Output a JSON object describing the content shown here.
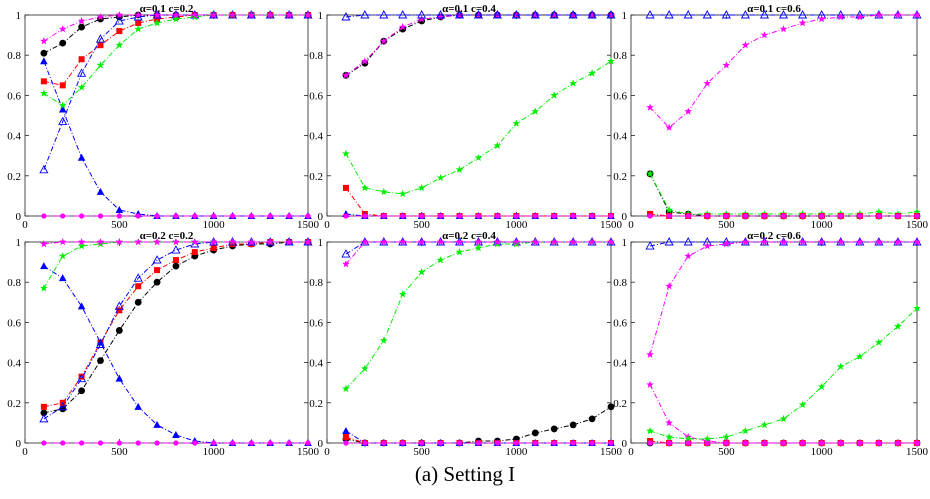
{
  "caption": "(a) Setting I",
  "colors": {
    "black": "#000000",
    "red": "#ff0000",
    "blue": "#0000ff",
    "green": "#00ee00",
    "magenta": "#ff00ff"
  },
  "chart_data": [
    {
      "type": "line",
      "title": "α=0.1 c=0.2",
      "x": [
        100,
        200,
        300,
        400,
        500,
        600,
        700,
        800,
        900,
        1000,
        1100,
        1200,
        1300,
        1400,
        1500
      ],
      "xlim": [
        0,
        1500
      ],
      "ylim": [
        0,
        1
      ],
      "xticks": [
        "0",
        "500",
        "1000",
        "1500"
      ],
      "yticks": [
        "0",
        "0.2",
        "0.4",
        "0.6",
        "0.8",
        "1"
      ],
      "series": [
        {
          "color": "black",
          "marker": "circle",
          "values": [
            0.81,
            0.86,
            0.94,
            0.98,
            0.99,
            1,
            1,
            1,
            1,
            1,
            1,
            1,
            1,
            1,
            1
          ]
        },
        {
          "color": "red",
          "marker": "square",
          "values": [
            0.67,
            0.65,
            0.78,
            0.85,
            0.92,
            0.96,
            0.98,
            0.99,
            1,
            1,
            1,
            1,
            1,
            1,
            1
          ]
        },
        {
          "color": "blue",
          "marker": "triangle-filled",
          "values": [
            0.77,
            0.53,
            0.29,
            0.12,
            0.03,
            0.01,
            0,
            0,
            0,
            0,
            0,
            0,
            0,
            0,
            0
          ]
        },
        {
          "color": "blue",
          "marker": "triangle-open",
          "values": [
            0.23,
            0.47,
            0.71,
            0.88,
            0.97,
            0.99,
            1,
            1,
            1,
            1,
            1,
            1,
            1,
            1,
            1
          ]
        },
        {
          "color": "green",
          "marker": "star",
          "values": [
            0.61,
            0.55,
            0.64,
            0.75,
            0.85,
            0.93,
            0.96,
            0.98,
            0.99,
            1,
            1,
            1,
            1,
            1,
            1
          ]
        },
        {
          "color": "magenta",
          "marker": "star",
          "values": [
            0.87,
            0.93,
            0.97,
            0.99,
            1,
            1,
            1,
            1,
            1,
            1,
            1,
            1,
            1,
            1,
            1
          ]
        },
        {
          "color": "magenta",
          "marker": "circle-small",
          "values": [
            0,
            0,
            0,
            0,
            0,
            0,
            0,
            0,
            0,
            0,
            0,
            0,
            0,
            0,
            0
          ]
        }
      ]
    },
    {
      "type": "line",
      "title": "α=0.1 c=0.4",
      "x": [
        100,
        200,
        300,
        400,
        500,
        600,
        700,
        800,
        900,
        1000,
        1100,
        1200,
        1300,
        1400,
        1500
      ],
      "xlim": [
        0,
        1500
      ],
      "ylim": [
        0,
        1
      ],
      "xticks": [
        "0",
        "500",
        "1000",
        "1500"
      ],
      "yticks": [
        "0",
        "0.2",
        "0.4",
        "0.6",
        "0.8",
        "1"
      ],
      "series": [
        {
          "color": "black",
          "marker": "circle",
          "values": [
            0.7,
            0.76,
            0.87,
            0.93,
            0.97,
            0.99,
            1,
            1,
            1,
            1,
            1,
            1,
            1,
            1,
            1
          ]
        },
        {
          "color": "magenta",
          "marker": "star",
          "values": [
            0.7,
            0.77,
            0.87,
            0.94,
            0.98,
            0.99,
            1,
            1,
            1,
            1,
            1,
            1,
            1,
            1,
            1
          ]
        },
        {
          "color": "red",
          "marker": "square",
          "values": [
            0.14,
            0.01,
            0,
            0,
            0,
            0,
            0,
            0,
            0,
            0,
            0,
            0,
            0,
            0,
            0
          ]
        },
        {
          "color": "blue",
          "marker": "triangle-filled",
          "values": [
            0.01,
            0,
            0,
            0,
            0,
            0,
            0,
            0,
            0,
            0,
            0,
            0,
            0,
            0,
            0
          ]
        },
        {
          "color": "blue",
          "marker": "triangle-open",
          "values": [
            0.99,
            1,
            1,
            1,
            1,
            1,
            1,
            1,
            1,
            1,
            1,
            1,
            1,
            1,
            1
          ]
        },
        {
          "color": "green",
          "marker": "star",
          "values": [
            0.31,
            0.14,
            0.12,
            0.11,
            0.14,
            0.19,
            0.23,
            0.29,
            0.35,
            0.46,
            0.52,
            0.6,
            0.66,
            0.71,
            0.77
          ]
        },
        {
          "color": "magenta",
          "marker": "circle-small",
          "values": [
            0,
            0,
            0,
            0,
            0,
            0,
            0,
            0,
            0,
            0,
            0,
            0,
            0,
            0,
            0
          ]
        }
      ]
    },
    {
      "type": "line",
      "title": "α=0.1 c=0.6",
      "x": [
        100,
        200,
        300,
        400,
        500,
        600,
        700,
        800,
        900,
        1000,
        1100,
        1200,
        1300,
        1400,
        1500
      ],
      "xlim": [
        0,
        1500
      ],
      "ylim": [
        0,
        1
      ],
      "xticks": [
        "0",
        "500",
        "1000",
        "1500"
      ],
      "yticks": [
        "0",
        "0.2",
        "0.4",
        "0.6",
        "0.8",
        "1"
      ],
      "series": [
        {
          "color": "black",
          "marker": "circle",
          "values": [
            0.21,
            0.02,
            0.01,
            0,
            0,
            0,
            0,
            0,
            0,
            0,
            0,
            0,
            0,
            0,
            0
          ]
        },
        {
          "color": "green",
          "marker": "star",
          "values": [
            0.21,
            0.03,
            0.01,
            0.01,
            0.01,
            0.01,
            0.01,
            0.01,
            0.01,
            0.01,
            0.01,
            0.01,
            0.02,
            0.01,
            0.02
          ]
        },
        {
          "color": "red",
          "marker": "square",
          "values": [
            0.01,
            0,
            0,
            0,
            0,
            0,
            0,
            0,
            0,
            0,
            0,
            0,
            0,
            0,
            0
          ]
        },
        {
          "color": "blue",
          "marker": "triangle-open",
          "values": [
            1,
            1,
            1,
            1,
            1,
            1,
            1,
            1,
            1,
            1,
            1,
            1,
            1,
            1,
            1
          ]
        },
        {
          "color": "magenta",
          "marker": "star",
          "values": [
            0.54,
            0.44,
            0.52,
            0.66,
            0.75,
            0.85,
            0.9,
            0.93,
            0.96,
            0.98,
            0.99,
            0.99,
            1,
            1,
            1
          ]
        },
        {
          "color": "magenta",
          "marker": "circle-small",
          "values": [
            0,
            0,
            0,
            0,
            0,
            0,
            0,
            0,
            0,
            0,
            0,
            0,
            0,
            0,
            0
          ]
        }
      ]
    },
    {
      "type": "line",
      "title": "α=0.2 c=0.2",
      "x": [
        100,
        200,
        300,
        400,
        500,
        600,
        700,
        800,
        900,
        1000,
        1100,
        1200,
        1300,
        1400,
        1500
      ],
      "xlim": [
        0,
        1500
      ],
      "ylim": [
        0,
        1
      ],
      "xticks": [
        "0",
        "500",
        "1000",
        "1500"
      ],
      "yticks": [
        "0",
        "0.2",
        "0.4",
        "0.6",
        "0.8",
        "1"
      ],
      "series": [
        {
          "color": "black",
          "marker": "circle",
          "values": [
            0.15,
            0.17,
            0.26,
            0.41,
            0.56,
            0.7,
            0.8,
            0.88,
            0.93,
            0.96,
            0.98,
            0.99,
            0.99,
            1,
            1
          ]
        },
        {
          "color": "red",
          "marker": "square",
          "values": [
            0.18,
            0.2,
            0.33,
            0.5,
            0.66,
            0.78,
            0.86,
            0.91,
            0.95,
            0.97,
            0.99,
            0.99,
            1,
            1,
            1
          ]
        },
        {
          "color": "blue",
          "marker": "triangle-filled",
          "values": [
            0.88,
            0.82,
            0.68,
            0.5,
            0.32,
            0.18,
            0.09,
            0.04,
            0.01,
            0,
            0,
            0,
            0,
            0,
            0
          ]
        },
        {
          "color": "blue",
          "marker": "triangle-open",
          "values": [
            0.12,
            0.18,
            0.32,
            0.49,
            0.68,
            0.82,
            0.91,
            0.96,
            0.99,
            1,
            1,
            1,
            1,
            1,
            1
          ]
        },
        {
          "color": "green",
          "marker": "star",
          "values": [
            0.77,
            0.93,
            0.98,
            0.99,
            1,
            1,
            1,
            1,
            1,
            1,
            1,
            1,
            1,
            1,
            1
          ]
        },
        {
          "color": "magenta",
          "marker": "star",
          "values": [
            0.99,
            1,
            1,
            1,
            1,
            1,
            1,
            1,
            1,
            1,
            1,
            1,
            1,
            1,
            1
          ]
        },
        {
          "color": "magenta",
          "marker": "circle-small",
          "values": [
            0,
            0,
            0,
            0,
            0,
            0,
            0,
            0,
            0,
            0,
            0,
            0,
            0,
            0,
            0
          ]
        }
      ]
    },
    {
      "type": "line",
      "title": "α=0.2 c=0.4",
      "x": [
        100,
        200,
        300,
        400,
        500,
        600,
        700,
        800,
        900,
        1000,
        1100,
        1200,
        1300,
        1400,
        1500
      ],
      "xlim": [
        0,
        1500
      ],
      "ylim": [
        0,
        1
      ],
      "xticks": [
        "0",
        "500",
        "1000",
        "1500"
      ],
      "yticks": [
        "0",
        "0.2",
        "0.4",
        "0.6",
        "0.8",
        "1"
      ],
      "series": [
        {
          "color": "black",
          "marker": "circle",
          "values": [
            0.02,
            0,
            0,
            0,
            0,
            0,
            0,
            0.01,
            0.01,
            0.02,
            0.05,
            0.07,
            0.09,
            0.12,
            0.18
          ]
        },
        {
          "color": "red",
          "marker": "square",
          "values": [
            0.03,
            0,
            0,
            0,
            0,
            0,
            0,
            0,
            0,
            0,
            0,
            0,
            0,
            0,
            0
          ]
        },
        {
          "color": "blue",
          "marker": "triangle-filled",
          "values": [
            0.06,
            0,
            0,
            0,
            0,
            0,
            0,
            0,
            0,
            0,
            0,
            0,
            0,
            0,
            0
          ]
        },
        {
          "color": "blue",
          "marker": "triangle-open",
          "values": [
            0.94,
            1,
            1,
            1,
            1,
            1,
            1,
            1,
            1,
            1,
            1,
            1,
            1,
            1,
            1
          ]
        },
        {
          "color": "green",
          "marker": "star",
          "values": [
            0.27,
            0.37,
            0.51,
            0.74,
            0.85,
            0.91,
            0.95,
            0.97,
            0.99,
            0.99,
            1,
            1,
            1,
            1,
            1
          ]
        },
        {
          "color": "magenta",
          "marker": "star",
          "values": [
            0.89,
            1,
            1,
            1,
            1,
            1,
            1,
            1,
            1,
            1,
            1,
            1,
            1,
            1,
            1
          ]
        },
        {
          "color": "magenta",
          "marker": "circle-small",
          "values": [
            0,
            0,
            0,
            0,
            0,
            0,
            0,
            0,
            0,
            0,
            0,
            0,
            0,
            0,
            0
          ]
        }
      ]
    },
    {
      "type": "line",
      "title": "α=0.2 c=0.6",
      "x": [
        100,
        200,
        300,
        400,
        500,
        600,
        700,
        800,
        900,
        1000,
        1100,
        1200,
        1300,
        1400,
        1500
      ],
      "xlim": [
        0,
        1500
      ],
      "ylim": [
        0,
        1
      ],
      "xticks": [
        "0",
        "500",
        "1000",
        "1500"
      ],
      "yticks": [
        "0",
        "0.2",
        "0.4",
        "0.6",
        "0.8",
        "1"
      ],
      "series": [
        {
          "color": "black",
          "marker": "circle",
          "values": [
            0,
            0,
            0,
            0,
            0,
            0,
            0,
            0,
            0,
            0,
            0,
            0,
            0,
            0,
            0
          ]
        },
        {
          "color": "red",
          "marker": "square",
          "values": [
            0.01,
            0,
            0,
            0,
            0,
            0,
            0,
            0,
            0,
            0,
            0,
            0,
            0,
            0,
            0
          ]
        },
        {
          "color": "blue",
          "marker": "triangle-open",
          "values": [
            0.98,
            1,
            1,
            1,
            1,
            1,
            1,
            1,
            1,
            1,
            1,
            1,
            1,
            1,
            1
          ]
        },
        {
          "color": "magenta",
          "marker": "star",
          "values": [
            0.44,
            0.78,
            0.93,
            0.98,
            0.99,
            1,
            1,
            1,
            1,
            1,
            1,
            1,
            1,
            1,
            1
          ]
        },
        {
          "color": "magenta",
          "marker": "star",
          "values": [
            0.29,
            0.1,
            0.03,
            0.01,
            0,
            0,
            0,
            0,
            0,
            0,
            0,
            0,
            0,
            0,
            0
          ]
        },
        {
          "color": "green",
          "marker": "star",
          "values": [
            0.06,
            0.03,
            0.02,
            0.02,
            0.03,
            0.06,
            0.09,
            0.12,
            0.19,
            0.28,
            0.38,
            0.43,
            0.5,
            0.58,
            0.67
          ]
        },
        {
          "color": "magenta",
          "marker": "circle-small",
          "values": [
            0,
            0,
            0,
            0,
            0,
            0,
            0,
            0,
            0,
            0,
            0,
            0,
            0,
            0,
            0
          ]
        }
      ]
    }
  ]
}
